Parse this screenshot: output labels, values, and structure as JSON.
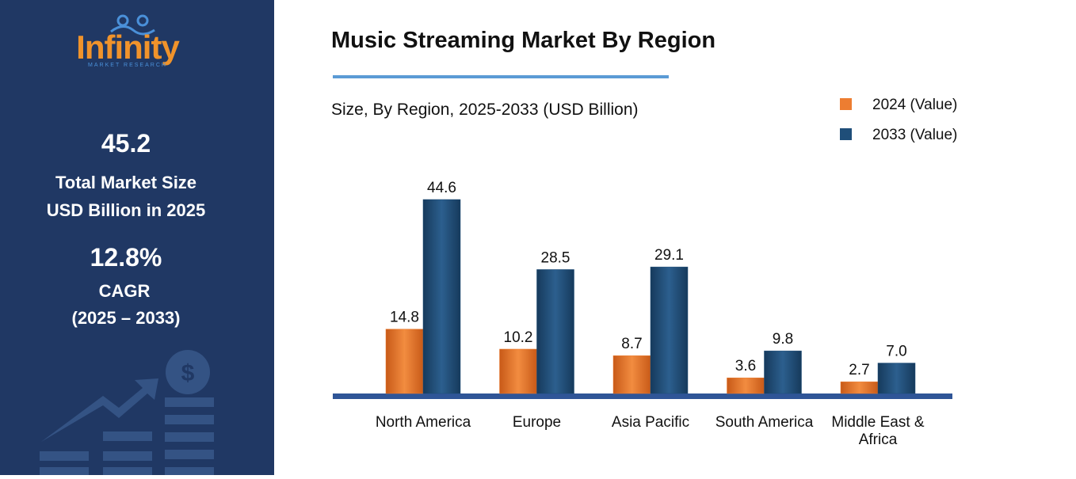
{
  "sidebar": {
    "logo": "Infinity",
    "logo_tagline": "MARKET RESEARCH",
    "market_size": "45.2",
    "market_size_label_1": "Total Market Size",
    "market_size_label_2": "USD Billion in 2025",
    "cagr": "12.8%",
    "cagr_label": "CAGR",
    "cagr_period": "(2025 – 2033)"
  },
  "chart_data": {
    "type": "bar",
    "title": "Music Streaming Market By Region",
    "subtitle": "Size, By Region, 2025-2033 (USD Billion)",
    "categories": [
      "North America",
      "Europe",
      "Asia Pacific",
      "South America",
      "Middle East & Africa"
    ],
    "series": [
      {
        "name": "2024 (Value)",
        "color": "#ed7d31",
        "values": [
          14.8,
          10.2,
          8.7,
          3.6,
          2.7
        ],
        "value_labels": [
          "14.8",
          "10.2",
          "8.7",
          "3.6",
          "2.7"
        ]
      },
      {
        "name": "2033 (Value)",
        "color": "#1f4e79",
        "values": [
          44.6,
          28.5,
          29.1,
          9.8,
          7.0
        ],
        "value_labels": [
          "44.6",
          "28.5",
          "29.1",
          "9.8",
          "7.0"
        ]
      }
    ],
    "legend": "top-right"
  }
}
